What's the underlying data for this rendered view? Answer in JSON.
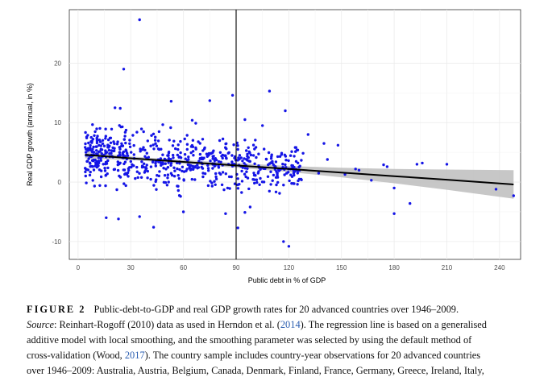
{
  "chart_data": {
    "type": "scatter",
    "xlabel": "Public debt in % of GDP",
    "ylabel": "Real GDP growth (annual, in %)",
    "xticks": [
      0,
      30,
      60,
      90,
      120,
      150,
      180,
      210,
      240
    ],
    "yticks": [
      -10,
      0,
      10,
      20
    ],
    "xlim": [
      -5,
      252
    ],
    "ylim": [
      -13,
      29
    ],
    "vline": 90,
    "grid": true,
    "colors": {
      "points": "#1515e6",
      "line": "#000000",
      "band": "#bdbdbd",
      "grid": "#ebebeb"
    },
    "regression_line": [
      [
        4,
        4.6
      ],
      [
        30,
        4.0
      ],
      [
        60,
        3.4
      ],
      [
        90,
        2.8
      ],
      [
        120,
        2.2
      ],
      [
        150,
        1.6
      ],
      [
        180,
        1.0
      ],
      [
        210,
        0.4
      ],
      [
        248,
        -0.4
      ]
    ],
    "confidence_band": {
      "x": [
        4,
        30,
        60,
        90,
        120,
        150,
        180,
        210,
        248
      ],
      "upper": [
        5.2,
        4.3,
        3.7,
        3.2,
        2.7,
        2.4,
        2.2,
        2.1,
        2.0
      ],
      "lower": [
        4.0,
        3.7,
        3.1,
        2.4,
        1.7,
        0.8,
        -0.2,
        -1.3,
        -2.8
      ]
    },
    "outliers": [
      [
        35,
        27.3
      ],
      [
        26,
        19.0
      ],
      [
        109,
        15.3
      ],
      [
        88,
        14.6
      ],
      [
        53,
        13.6
      ],
      [
        75,
        13.7
      ],
      [
        21,
        12.5
      ],
      [
        24,
        12.4
      ],
      [
        118,
        12.0
      ],
      [
        65,
        10.4
      ],
      [
        67,
        9.9
      ],
      [
        95,
        10.5
      ],
      [
        131,
        8.0
      ],
      [
        105,
        9.5
      ],
      [
        91,
        5.5
      ],
      [
        92,
        4.5
      ],
      [
        140,
        6.5
      ],
      [
        148,
        6.2
      ],
      [
        142,
        3.8
      ],
      [
        158,
        2.2
      ],
      [
        160,
        2.0
      ],
      [
        176,
        2.6
      ],
      [
        174,
        2.9
      ],
      [
        193,
        3.0
      ],
      [
        196,
        3.2
      ],
      [
        210,
        3.0
      ],
      [
        123,
        2.5
      ],
      [
        137,
        1.5
      ],
      [
        126,
        0.5
      ],
      [
        152,
        1.3
      ],
      [
        167,
        0.3
      ],
      [
        180,
        -1.0
      ],
      [
        238,
        -1.2
      ],
      [
        248,
        -2.3
      ],
      [
        189,
        -3.6
      ],
      [
        180,
        -5.3
      ],
      [
        91,
        -7.7
      ],
      [
        117,
        -10.0
      ],
      [
        120,
        -10.8
      ],
      [
        43,
        -7.6
      ],
      [
        35,
        -5.8
      ],
      [
        16,
        -6.0
      ],
      [
        23,
        -6.2
      ],
      [
        60,
        -5.0
      ],
      [
        95,
        -5.1
      ],
      [
        84,
        -5.3
      ],
      [
        98,
        -4.2
      ]
    ]
  },
  "caption": {
    "label": "FIGURE 2",
    "title": "Public-debt-to-GDP and real GDP growth rates for 20 advanced countries over 1946–2009.",
    "source_label": "Source",
    "source_text_1": ": Reinhart-Rogoff (2010) data as used in Herndon et al. (",
    "cite_1": "2014",
    "source_text_2": "). The regression line is based on a generalised",
    "line3": "additive model with local smoothing, and the smoothing parameter was selected by using the default method of",
    "line4_a": "cross-validation (Wood, ",
    "cite_2": "2017",
    "line4_b": "). The country sample includes country-year observations for 20 advanced countries",
    "line5": "over 1946–2009: Australia, Austria, Belgium, Canada, Denmark, Finland, France, Germany, Greece, Ireland, Italy,"
  }
}
